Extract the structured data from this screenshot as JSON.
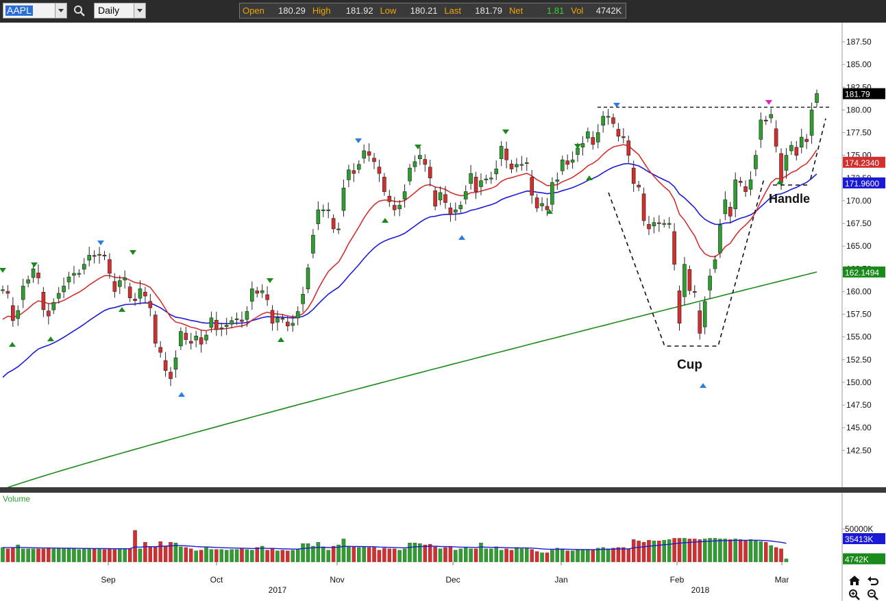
{
  "toolbar": {
    "symbol": "AAPL",
    "period": "Daily",
    "quote": [
      {
        "label": "Open",
        "value": "180.29"
      },
      {
        "label": "High",
        "value": "181.92"
      },
      {
        "label": "Low",
        "value": "180.21"
      },
      {
        "label": "Last",
        "value": "181.79"
      },
      {
        "label": "Net",
        "value": "1.81"
      },
      {
        "label": "Vol",
        "value": "4742K"
      }
    ]
  },
  "icons": [
    "search-icon",
    "home-icon",
    "undo-icon",
    "zoom-in-icon",
    "zoom-out-icon"
  ],
  "colors": {
    "up": "#2e9e2e",
    "down": "#d32f2f",
    "ma_short": "#d32f2f",
    "ma_mid": "#1a1ad6",
    "ma_long": "#1a8a1a",
    "signal_blue": "#2a7de1",
    "signal_green": "#1a8a1a",
    "signal_magenta": "#e020c0"
  },
  "chart_data": [
    {
      "type": "candlestick",
      "ylim": [
        140,
        190
      ],
      "y_ticks": [
        "187.50",
        "185.00",
        "182.50",
        "180.00",
        "177.50",
        "175.00",
        "172.50",
        "170.00",
        "167.50",
        "165.00",
        "162.50",
        "160.00",
        "157.50",
        "155.00",
        "152.50",
        "150.00",
        "147.50",
        "145.00",
        "142.50"
      ],
      "x_labels": [
        "Sep",
        "Oct",
        "Nov",
        "Dec",
        "Jan",
        "Feb",
        "Mar"
      ],
      "year_labels": [
        "2017",
        "2018"
      ],
      "price_labels": [
        {
          "text": "181.79",
          "color": "#000000"
        },
        {
          "text": "174.2340",
          "color": "#d32f2f"
        },
        {
          "text": "171.9600",
          "color": "#1a1ad6"
        },
        {
          "text": "162.1494",
          "color": "#1a8a1a"
        }
      ],
      "annotations": [
        "Cup",
        "Handle"
      ],
      "resistance_level": 180.3,
      "closes": [
        160.2,
        159.8,
        156.8,
        157.9,
        160.6,
        161.3,
        162.5,
        161.5,
        158.0,
        157.3,
        158.8,
        159.8,
        160.6,
        161.6,
        162.0,
        162.0,
        163.0,
        164.0,
        163.9,
        164.1,
        163.9,
        162.0,
        160.0,
        161.2,
        161.5,
        159.3,
        159.0,
        160.3,
        159.5,
        158.2,
        154.3,
        153.3,
        151.3,
        150.4,
        152.7,
        155.6,
        154.7,
        154.3,
        155.1,
        154.2,
        155.2,
        157.1,
        155.8,
        156.0,
        156.3,
        156.8,
        157.0,
        156.7,
        157.8,
        160.3,
        159.8,
        160.1,
        159.1,
        156.5,
        157.1,
        157.0,
        156.2,
        156.5,
        157.8,
        159.7,
        162.6,
        166.2,
        169.0,
        169.0,
        169.0,
        166.9,
        166.9,
        171.4,
        173.4,
        173.0,
        174.0,
        175.5,
        175.0,
        174.3,
        173.0,
        171.0,
        169.9,
        169.0,
        169.5,
        171.0,
        173.6,
        174.3,
        175.0,
        174.0,
        172.5,
        169.4,
        170.9,
        169.8,
        168.5,
        169.0,
        169.5,
        171.0,
        173.0,
        171.0,
        172.2,
        172.4,
        172.5,
        173.5,
        176.0,
        174.5,
        173.5,
        174.0,
        174.0,
        174.2,
        170.6,
        169.2,
        169.7,
        169.0,
        172.0,
        172.3,
        174.5,
        174.0,
        174.5,
        175.8,
        176.3,
        177.6,
        176.2,
        177.5,
        179.3,
        179.3,
        178.5,
        177.1,
        177.0,
        175.0,
        171.9,
        171.5,
        167.8,
        166.9,
        167.6,
        167.5,
        167.5,
        167.5,
        163.0,
        156.5,
        163.0,
        160.1,
        159.9,
        155.4,
        158.9,
        161.7,
        163.5,
        167.3,
        170.1,
        168.3,
        172.3,
        172.0,
        171.0,
        172.3,
        175.0,
        178.9,
        178.8,
        179.5,
        176.0,
        172.0,
        175.0,
        176.1,
        175.0,
        177.0,
        176.5,
        180.0,
        181.8
      ],
      "highs_lows_note": "per-bar wicks derived in script",
      "series": [
        {
          "name": "174.2340",
          "kind": "ma_short"
        },
        {
          "name": "171.9600",
          "kind": "ma_mid"
        },
        {
          "name": "162.1494",
          "kind": "ma_long"
        }
      ]
    },
    {
      "type": "bar",
      "title": "Volume",
      "y_ticks": [
        "50000K"
      ],
      "price_labels": [
        {
          "text": "35413K",
          "color": "#1a1ad6"
        },
        {
          "text": "4742K",
          "color": "#1a8a1a"
        }
      ],
      "ylim_k": [
        0,
        60000
      ],
      "values_k": [
        22000,
        20000,
        21000,
        26000,
        20000,
        20000,
        20000,
        20000,
        20000,
        21000,
        20000,
        20000,
        20000,
        20000,
        20000,
        19000,
        20000,
        20000,
        20000,
        20000,
        19000,
        20000,
        19000,
        20000,
        20000,
        20000,
        48000,
        20000,
        30000,
        23000,
        23000,
        31000,
        24000,
        30000,
        29000,
        23000,
        22000,
        20000,
        17000,
        18000,
        22000,
        19000,
        19000,
        19000,
        18000,
        19000,
        19000,
        20000,
        19000,
        18000,
        22000,
        24000,
        18000,
        20000,
        17000,
        18000,
        17000,
        18000,
        20000,
        28000,
        28000,
        24000,
        30000,
        23000,
        18000,
        24000,
        26000,
        35000,
        23000,
        23000,
        22000,
        23000,
        22000,
        22000,
        18000,
        21000,
        20000,
        20000,
        18000,
        20000,
        29000,
        29000,
        28000,
        26000,
        27000,
        23000,
        20000,
        22000,
        23000,
        18000,
        20000,
        22000,
        20000,
        20000,
        29000,
        20000,
        20000,
        23000,
        18000,
        20000,
        18000,
        22000,
        20000,
        21000,
        19000,
        16000,
        14000,
        14000,
        18000,
        21000,
        20000,
        17000,
        17000,
        18000,
        18000,
        18000,
        18000,
        21000,
        22000,
        20000,
        21000,
        22000,
        22000,
        20000,
        34000,
        32000,
        30000,
        33000,
        32000,
        32000,
        33000,
        34000,
        36000,
        36000,
        36000,
        35000,
        35000,
        34000,
        35000,
        36000,
        36000,
        35000,
        35000,
        34000,
        35000,
        34000,
        32000,
        34000,
        33000,
        31000,
        30000,
        25000,
        22000,
        20000,
        4700
      ],
      "ma_note": "blue line = moving average of volume"
    }
  ]
}
